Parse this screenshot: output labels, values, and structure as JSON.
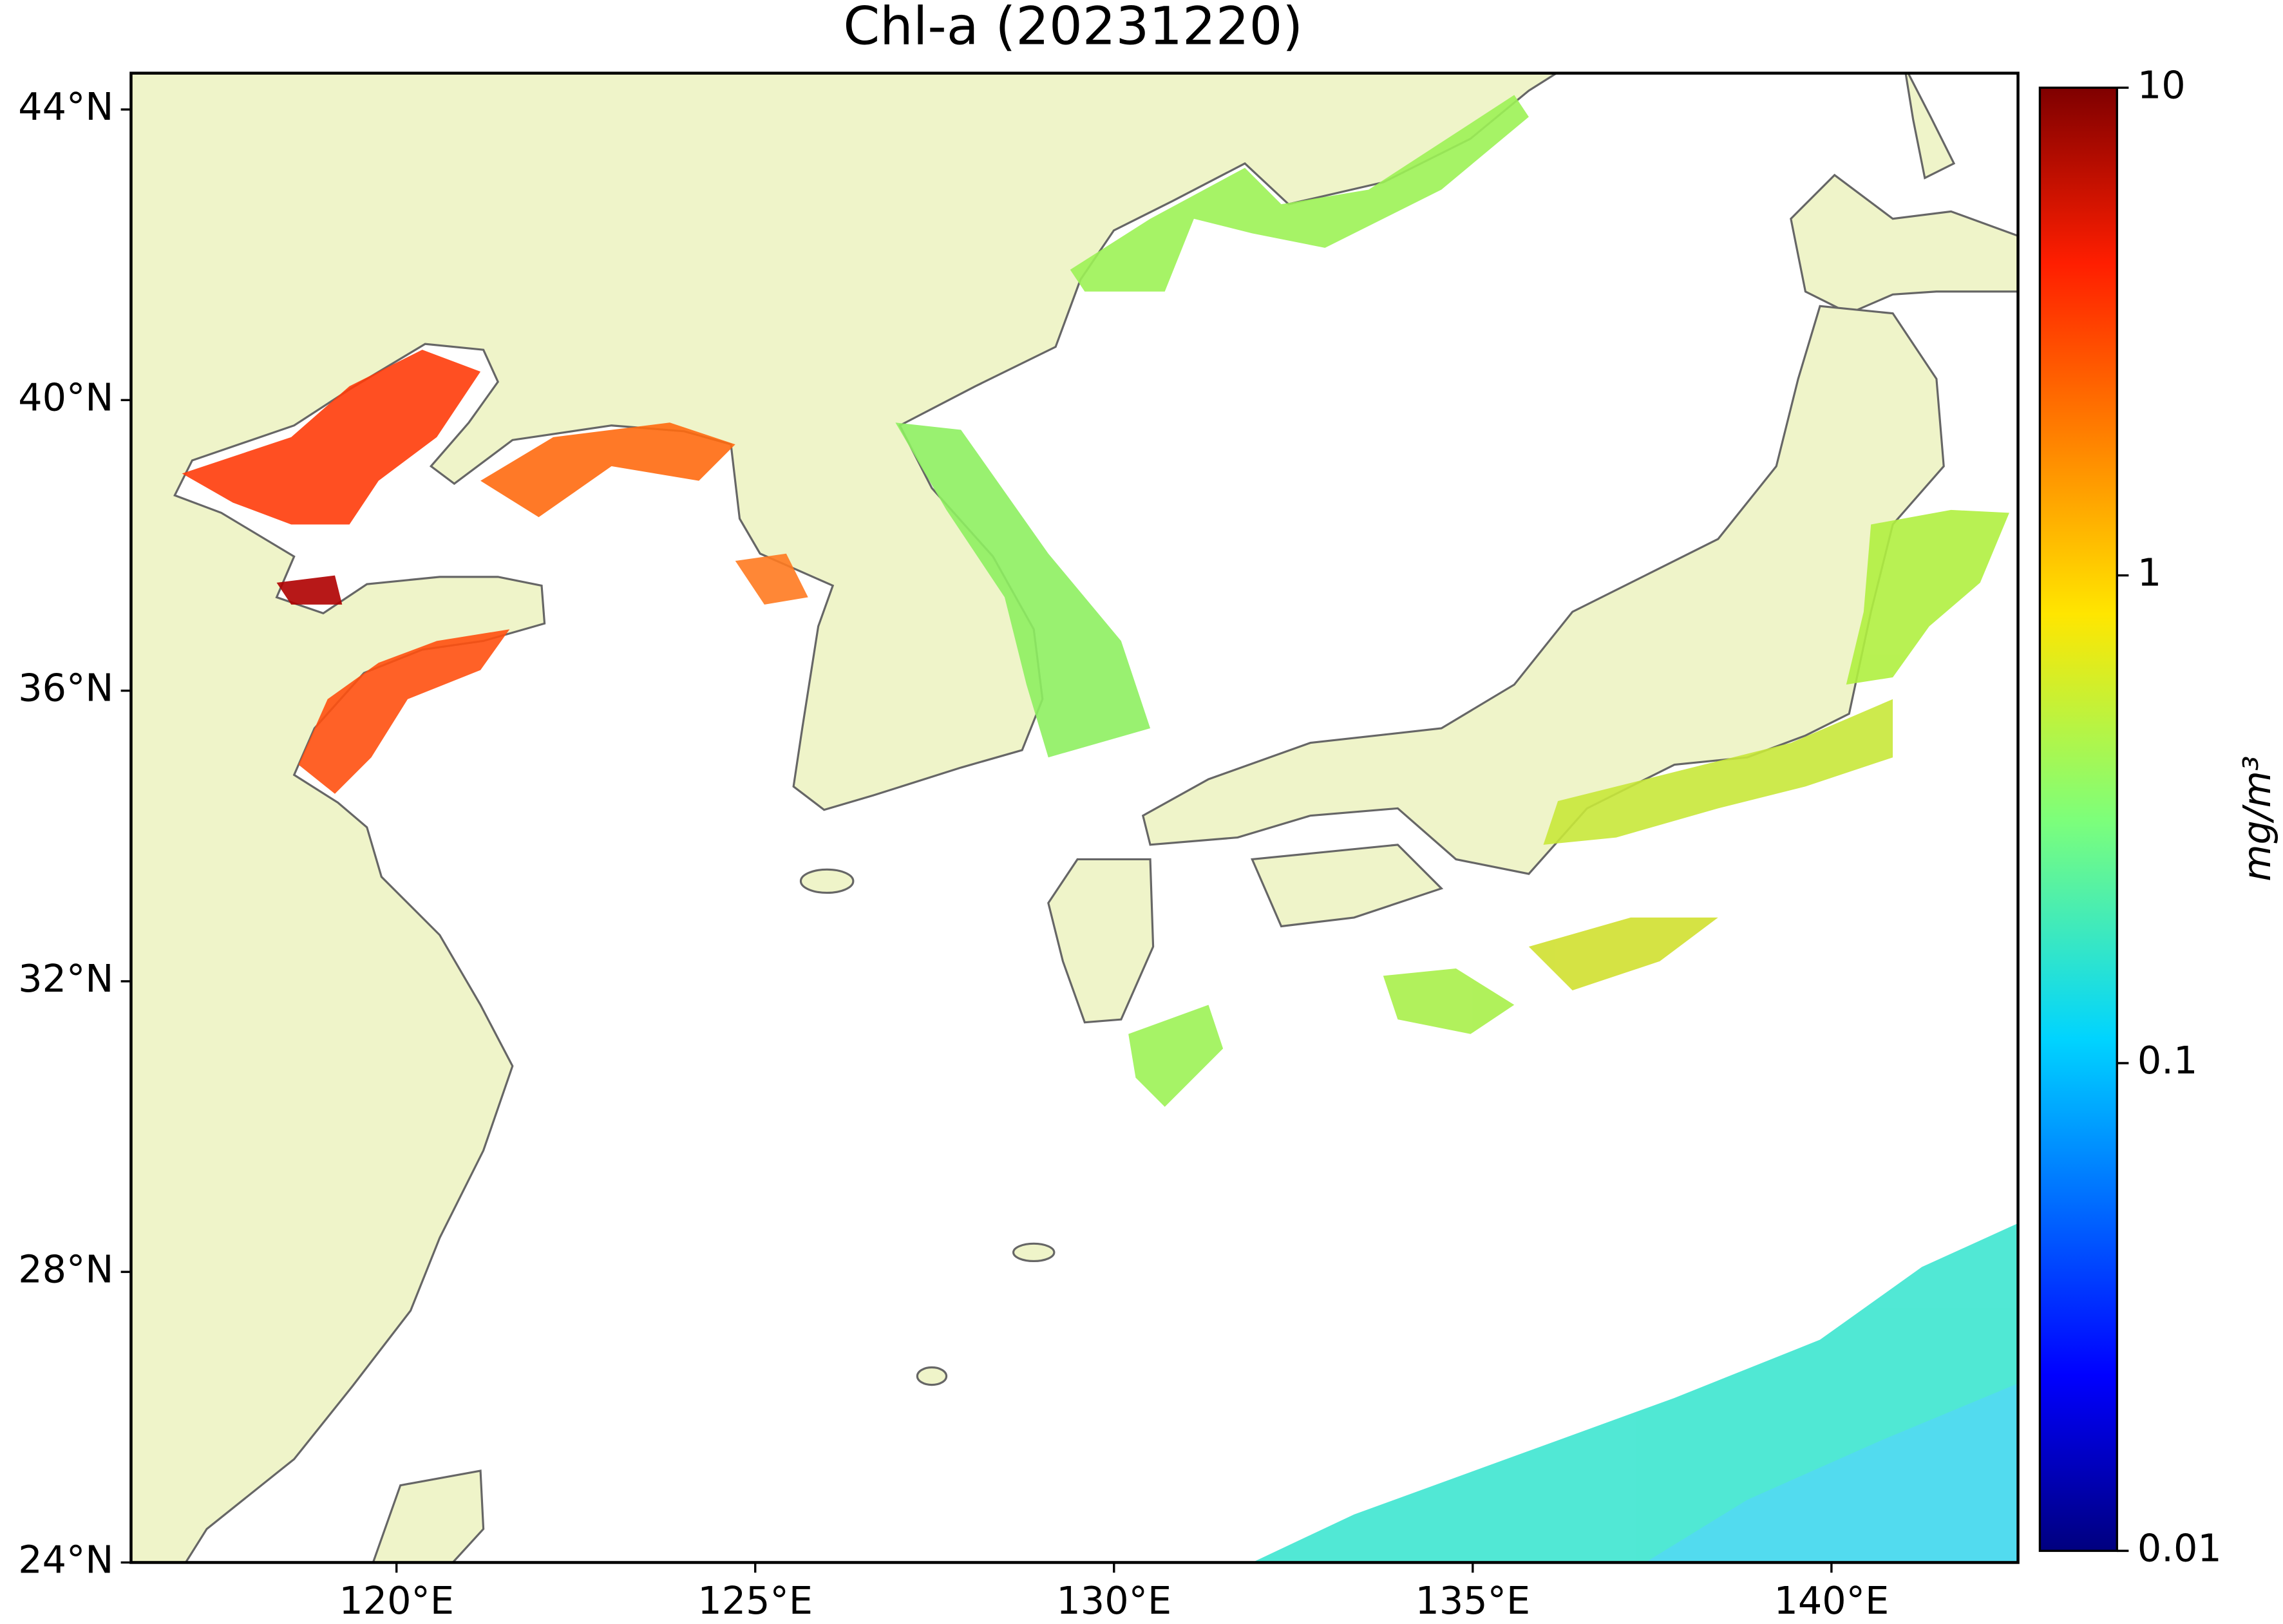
{
  "chart_data": {
    "type": "map",
    "title": "Chl-a (20231220)",
    "xlim": [
      116.3,
      142.6
    ],
    "ylim": [
      24,
      44.5
    ],
    "xticks": [
      {
        "value": 120,
        "label": "120°E"
      },
      {
        "value": 125,
        "label": "125°E"
      },
      {
        "value": 130,
        "label": "130°E"
      },
      {
        "value": 135,
        "label": "135°E"
      },
      {
        "value": 140,
        "label": "140°E"
      }
    ],
    "yticks": [
      {
        "value": 24,
        "label": "24°N"
      },
      {
        "value": 28,
        "label": "28°N"
      },
      {
        "value": 32,
        "label": "32°N"
      },
      {
        "value": 36,
        "label": "36°N"
      },
      {
        "value": 40,
        "label": "40°N"
      },
      {
        "value": 44,
        "label": "44°N"
      }
    ],
    "colorbar": {
      "label": "mg/m³",
      "scale": "log",
      "lim": [
        0.01,
        10
      ],
      "ticks": [
        0.01,
        0.1,
        1,
        10
      ]
    }
  }
}
